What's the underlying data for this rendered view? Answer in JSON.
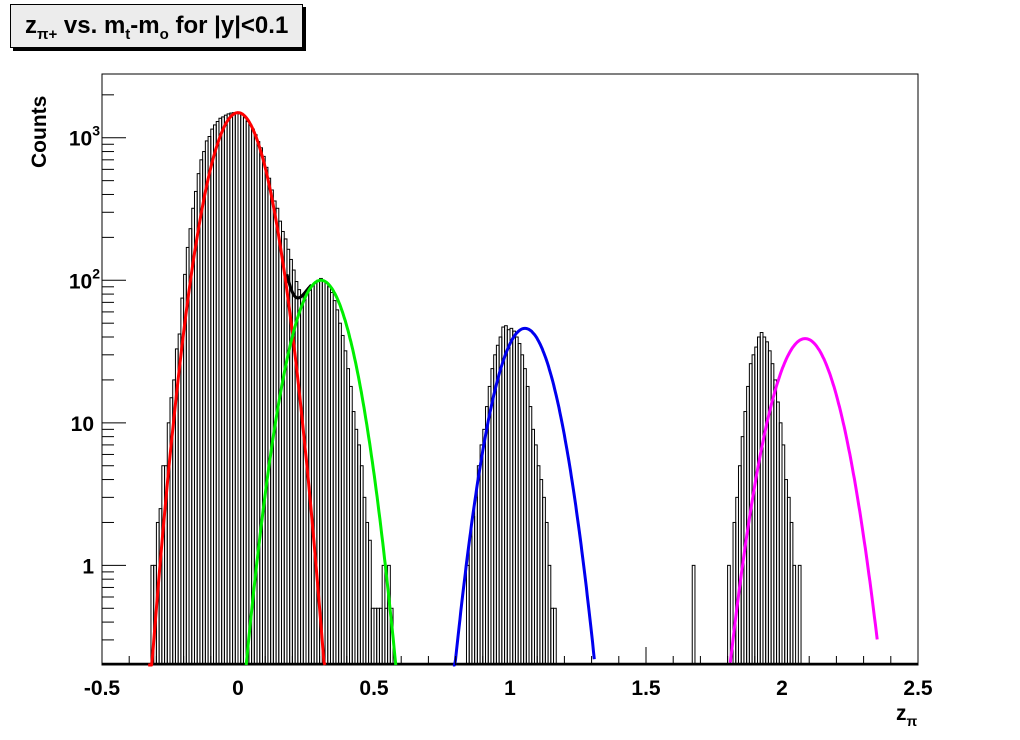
{
  "chart_data": {
    "type": "line",
    "title": {
      "main": "z",
      "main_sub": "π+",
      "rest1": " vs. m",
      "rest1_sub": "t",
      "rest2": "-m",
      "rest2_sub": "o",
      "rest3": " for |y|<0.1"
    },
    "xlabel": {
      "base": "z",
      "sub": "π"
    },
    "ylabel": "Counts",
    "xlim": [
      -0.5,
      2.5
    ],
    "ylim": [
      0.2,
      2800
    ],
    "log_y": true,
    "grid": false,
    "x_ticks": [
      {
        "value": -0.5,
        "label": "-0.5"
      },
      {
        "value": 0,
        "label": "0"
      },
      {
        "value": 0.5,
        "label": "0.5"
      },
      {
        "value": 1,
        "label": "1"
      },
      {
        "value": 1.5,
        "label": "1.5"
      },
      {
        "value": 2,
        "label": "2"
      },
      {
        "value": 2.5,
        "label": "2.5"
      }
    ],
    "y_ticks": [
      {
        "value": 1,
        "label": "1",
        "sup": ""
      },
      {
        "value": 10,
        "label": "10",
        "sup": ""
      },
      {
        "value": 100,
        "label": "10",
        "sup": "2"
      },
      {
        "value": 1000,
        "label": "10",
        "sup": "3"
      }
    ],
    "histogram": {
      "bin_width": 0.01,
      "color": "#000000",
      "bins": [
        [
          -0.32,
          1
        ],
        [
          -0.31,
          1
        ],
        [
          -0.3,
          2
        ],
        [
          -0.29,
          2.5
        ],
        [
          -0.28,
          5
        ],
        [
          -0.27,
          5
        ],
        [
          -0.26,
          10
        ],
        [
          -0.25,
          15
        ],
        [
          -0.24,
          20
        ],
        [
          -0.23,
          33
        ],
        [
          -0.22,
          42
        ],
        [
          -0.21,
          75
        ],
        [
          -0.2,
          110
        ],
        [
          -0.19,
          170
        ],
        [
          -0.18,
          230
        ],
        [
          -0.17,
          320
        ],
        [
          -0.16,
          420
        ],
        [
          -0.15,
          560
        ],
        [
          -0.14,
          700
        ],
        [
          -0.13,
          800
        ],
        [
          -0.12,
          950
        ],
        [
          -0.11,
          1020
        ],
        [
          -0.1,
          1150
        ],
        [
          -0.09,
          1230
        ],
        [
          -0.08,
          1300
        ],
        [
          -0.07,
          1370
        ],
        [
          -0.06,
          1400
        ],
        [
          -0.05,
          1440
        ],
        [
          -0.04,
          1470
        ],
        [
          -0.03,
          1490
        ],
        [
          -0.02,
          1500
        ],
        [
          -0.01,
          1480
        ],
        [
          0.0,
          1470
        ],
        [
          0.01,
          1450
        ],
        [
          0.02,
          1380
        ],
        [
          0.03,
          1300
        ],
        [
          0.04,
          1240
        ],
        [
          0.05,
          1150
        ],
        [
          0.06,
          1050
        ],
        [
          0.07,
          940
        ],
        [
          0.08,
          850
        ],
        [
          0.09,
          740
        ],
        [
          0.1,
          620
        ],
        [
          0.11,
          520
        ],
        [
          0.12,
          430
        ],
        [
          0.13,
          360
        ],
        [
          0.14,
          320
        ],
        [
          0.15,
          260
        ],
        [
          0.16,
          220
        ],
        [
          0.17,
          195
        ],
        [
          0.18,
          165
        ],
        [
          0.19,
          140
        ],
        [
          0.2,
          118
        ],
        [
          0.21,
          98
        ],
        [
          0.22,
          86
        ],
        [
          0.23,
          78
        ],
        [
          0.24,
          78
        ],
        [
          0.25,
          82
        ],
        [
          0.26,
          85
        ],
        [
          0.27,
          92
        ],
        [
          0.28,
          96
        ],
        [
          0.29,
          100
        ],
        [
          0.3,
          103
        ],
        [
          0.31,
          98
        ],
        [
          0.32,
          96
        ],
        [
          0.33,
          90
        ],
        [
          0.34,
          82
        ],
        [
          0.35,
          72
        ],
        [
          0.36,
          62
        ],
        [
          0.37,
          50
        ],
        [
          0.38,
          41
        ],
        [
          0.39,
          32
        ],
        [
          0.4,
          24
        ],
        [
          0.41,
          18
        ],
        [
          0.42,
          12
        ],
        [
          0.43,
          9
        ],
        [
          0.44,
          7
        ],
        [
          0.45,
          5
        ],
        [
          0.46,
          3
        ],
        [
          0.47,
          2
        ],
        [
          0.48,
          1.5
        ],
        [
          0.49,
          0.5
        ],
        [
          0.5,
          0.5
        ],
        [
          0.51,
          0.5
        ],
        [
          0.52,
          0.5
        ],
        [
          0.53,
          1
        ],
        [
          0.54,
          0.5
        ],
        [
          0.55,
          1
        ],
        [
          0.56,
          0.5
        ],
        [
          0.84,
          1
        ],
        [
          0.85,
          1.6
        ],
        [
          0.86,
          2.2
        ],
        [
          0.87,
          3
        ],
        [
          0.88,
          5
        ],
        [
          0.89,
          7
        ],
        [
          0.9,
          9
        ],
        [
          0.91,
          13
        ],
        [
          0.92,
          18
        ],
        [
          0.93,
          24
        ],
        [
          0.94,
          30
        ],
        [
          0.95,
          35
        ],
        [
          0.96,
          40
        ],
        [
          0.97,
          47
        ],
        [
          0.98,
          48
        ],
        [
          0.99,
          45
        ],
        [
          1.0,
          46
        ],
        [
          1.01,
          44
        ],
        [
          1.02,
          40
        ],
        [
          1.03,
          36
        ],
        [
          1.04,
          30
        ],
        [
          1.05,
          24
        ],
        [
          1.06,
          18
        ],
        [
          1.07,
          13
        ],
        [
          1.08,
          9
        ],
        [
          1.09,
          7
        ],
        [
          1.1,
          5
        ],
        [
          1.11,
          4
        ],
        [
          1.12,
          3
        ],
        [
          1.13,
          2
        ],
        [
          1.14,
          1
        ],
        [
          1.15,
          0.5
        ],
        [
          1.16,
          0.5
        ],
        [
          1.67,
          1
        ],
        [
          1.8,
          1
        ],
        [
          1.82,
          2
        ],
        [
          1.83,
          3
        ],
        [
          1.84,
          5
        ],
        [
          1.85,
          8
        ],
        [
          1.86,
          12
        ],
        [
          1.87,
          18
        ],
        [
          1.88,
          26
        ],
        [
          1.89,
          30
        ],
        [
          1.9,
          34
        ],
        [
          1.91,
          40
        ],
        [
          1.92,
          43
        ],
        [
          1.93,
          40
        ],
        [
          1.94,
          37
        ],
        [
          1.95,
          32
        ],
        [
          1.96,
          26
        ],
        [
          1.97,
          20
        ],
        [
          1.98,
          14
        ],
        [
          1.99,
          10
        ],
        [
          2.0,
          7
        ],
        [
          2.01,
          4
        ],
        [
          2.02,
          3
        ],
        [
          2.03,
          2
        ],
        [
          2.04,
          1
        ],
        [
          2.06,
          1
        ]
      ]
    },
    "series": [
      {
        "kind": "gaussian",
        "color": "#000000",
        "mean": 0.0,
        "peak": 1470,
        "sigma": 0.075,
        "range": [
          0.18,
          0.27
        ],
        "sum_with": "green"
      },
      {
        "kind": "gaussian",
        "color": "#ff0000",
        "mean": 0.0,
        "peak": 1500,
        "sigma": 0.075,
        "range": [
          -0.33,
          0.32
        ]
      },
      {
        "kind": "gaussian",
        "color": "#00ee00",
        "mean": 0.305,
        "peak": 100,
        "sigma": 0.078,
        "range": [
          0.03,
          0.58
        ]
      },
      {
        "kind": "gaussian",
        "color": "#0000ee",
        "mean": 1.055,
        "peak": 46,
        "sigma": 0.078,
        "range": [
          0.79,
          1.31
        ]
      },
      {
        "kind": "gaussian",
        "color": "#ff00ff",
        "mean": 2.085,
        "peak": 39,
        "sigma": 0.085,
        "range": [
          1.81,
          2.35
        ]
      }
    ]
  }
}
